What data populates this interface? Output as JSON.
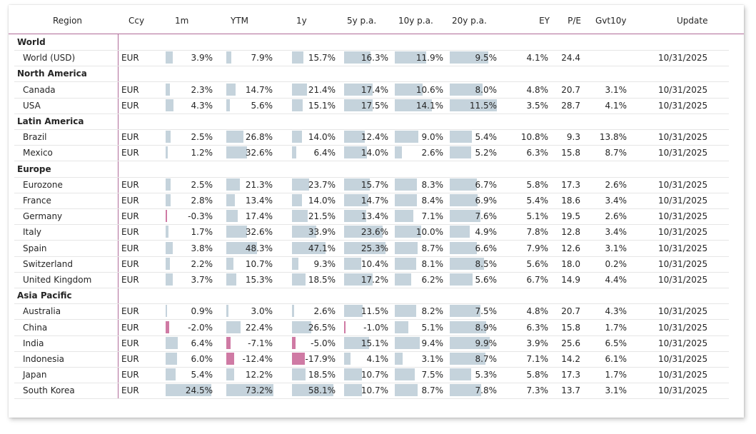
{
  "columns": [
    "Region",
    "Ccy",
    "1m",
    "YTM",
    "1y",
    "5y p.a.",
    "10y p.a.",
    "20y p.a.",
    "EY",
    "P/E",
    "Gvt10y",
    "Update"
  ],
  "colors": {
    "positive_bar": "#c5d3dc",
    "negative_bar": "#cf7aa4",
    "separator": "#b06a98"
  },
  "groups": [
    {
      "name": "World",
      "rows": [
        {
          "region": "World (USD)",
          "ccy": "EUR",
          "m1": 3.9,
          "ytm": 7.9,
          "y1": 15.7,
          "y5": 16.3,
          "y10": 11.9,
          "y20": 9.5,
          "ey": "4.1%",
          "pe": "24.4",
          "gvt": "",
          "update": "10/31/2025"
        }
      ]
    },
    {
      "name": "North America",
      "rows": [
        {
          "region": "Canada",
          "ccy": "EUR",
          "m1": 2.3,
          "ytm": 14.7,
          "y1": 21.4,
          "y5": 17.4,
          "y10": 10.6,
          "y20": 8.0,
          "ey": "4.8%",
          "pe": "20.7",
          "gvt": "3.1%",
          "update": "10/31/2025"
        },
        {
          "region": "USA",
          "ccy": "EUR",
          "m1": 4.3,
          "ytm": 5.6,
          "y1": 15.1,
          "y5": 17.5,
          "y10": 14.1,
          "y20": 11.5,
          "ey": "3.5%",
          "pe": "28.7",
          "gvt": "4.1%",
          "update": "10/31/2025"
        }
      ]
    },
    {
      "name": "Latin America",
      "rows": [
        {
          "region": "Brazil",
          "ccy": "EUR",
          "m1": 2.5,
          "ytm": 26.8,
          "y1": 14.0,
          "y5": 12.4,
          "y10": 9.0,
          "y20": 5.4,
          "ey": "10.8%",
          "pe": "9.3",
          "gvt": "13.8%",
          "update": "10/31/2025"
        },
        {
          "region": "Mexico",
          "ccy": "EUR",
          "m1": 1.2,
          "ytm": 32.6,
          "y1": 6.4,
          "y5": 14.0,
          "y10": 2.6,
          "y20": 5.2,
          "ey": "6.3%",
          "pe": "15.8",
          "gvt": "8.7%",
          "update": "10/31/2025"
        }
      ]
    },
    {
      "name": "Europe",
      "rows": [
        {
          "region": "Eurozone",
          "ccy": "EUR",
          "m1": 2.5,
          "ytm": 21.3,
          "y1": 23.7,
          "y5": 15.7,
          "y10": 8.3,
          "y20": 6.7,
          "ey": "5.8%",
          "pe": "17.3",
          "gvt": "2.6%",
          "update": "10/31/2025"
        },
        {
          "region": "France",
          "ccy": "EUR",
          "m1": 2.8,
          "ytm": 13.4,
          "y1": 14.0,
          "y5": 14.7,
          "y10": 8.4,
          "y20": 6.9,
          "ey": "5.4%",
          "pe": "18.6",
          "gvt": "3.4%",
          "update": "10/31/2025"
        },
        {
          "region": "Germany",
          "ccy": "EUR",
          "m1": -0.3,
          "ytm": 17.4,
          "y1": 21.5,
          "y5": 13.4,
          "y10": 7.1,
          "y20": 7.6,
          "ey": "5.1%",
          "pe": "19.5",
          "gvt": "2.6%",
          "update": "10/31/2025"
        },
        {
          "region": "Italy",
          "ccy": "EUR",
          "m1": 1.7,
          "ytm": 32.6,
          "y1": 33.9,
          "y5": 23.6,
          "y10": 10.0,
          "y20": 4.9,
          "ey": "7.8%",
          "pe": "12.8",
          "gvt": "3.4%",
          "update": "10/31/2025"
        },
        {
          "region": "Spain",
          "ccy": "EUR",
          "m1": 3.8,
          "ytm": 48.3,
          "y1": 47.1,
          "y5": 25.3,
          "y10": 8.7,
          "y20": 6.6,
          "ey": "7.9%",
          "pe": "12.6",
          "gvt": "3.1%",
          "update": "10/31/2025"
        },
        {
          "region": "Switzerland",
          "ccy": "EUR",
          "m1": 2.2,
          "ytm": 10.7,
          "y1": 9.3,
          "y5": 10.4,
          "y10": 8.1,
          "y20": 8.5,
          "ey": "5.6%",
          "pe": "18.0",
          "gvt": "0.2%",
          "update": "10/31/2025"
        },
        {
          "region": "United Kingdom",
          "ccy": "EUR",
          "m1": 3.7,
          "ytm": 15.3,
          "y1": 18.5,
          "y5": 17.2,
          "y10": 6.2,
          "y20": 5.6,
          "ey": "6.7%",
          "pe": "14.9",
          "gvt": "4.4%",
          "update": "10/31/2025"
        }
      ]
    },
    {
      "name": "Asia Pacific",
      "rows": [
        {
          "region": "Australia",
          "ccy": "EUR",
          "m1": 0.9,
          "ytm": 3.0,
          "y1": 2.6,
          "y5": 11.5,
          "y10": 8.2,
          "y20": 7.5,
          "ey": "4.8%",
          "pe": "20.7",
          "gvt": "4.3%",
          "update": "10/31/2025"
        },
        {
          "region": "China",
          "ccy": "EUR",
          "m1": -2.0,
          "ytm": 22.4,
          "y1": 26.5,
          "y5": -1.0,
          "y10": 5.1,
          "y20": 8.9,
          "ey": "6.3%",
          "pe": "15.8",
          "gvt": "1.7%",
          "update": "10/31/2025"
        },
        {
          "region": "India",
          "ccy": "EUR",
          "m1": 6.4,
          "ytm": -7.1,
          "y1": -5.0,
          "y5": 15.1,
          "y10": 9.4,
          "y20": 9.9,
          "ey": "3.9%",
          "pe": "25.6",
          "gvt": "6.5%",
          "update": "10/31/2025"
        },
        {
          "region": "Indonesia",
          "ccy": "EUR",
          "m1": 6.0,
          "ytm": -12.4,
          "y1": -17.9,
          "y5": 4.1,
          "y10": 3.1,
          "y20": 8.7,
          "ey": "7.1%",
          "pe": "14.2",
          "gvt": "6.1%",
          "update": "10/31/2025"
        },
        {
          "region": "Japan",
          "ccy": "EUR",
          "m1": 5.4,
          "ytm": 12.2,
          "y1": 18.5,
          "y5": 10.7,
          "y10": 7.5,
          "y20": 5.3,
          "ey": "5.8%",
          "pe": "17.3",
          "gvt": "1.7%",
          "update": "10/31/2025"
        },
        {
          "region": "South Korea",
          "ccy": "EUR",
          "m1": 24.5,
          "ytm": 73.2,
          "y1": 58.1,
          "y5": 10.7,
          "y10": 8.7,
          "y20": 7.8,
          "ey": "7.3%",
          "pe": "13.7",
          "gvt": "3.1%",
          "update": "10/31/2025"
        }
      ]
    }
  ]
}
